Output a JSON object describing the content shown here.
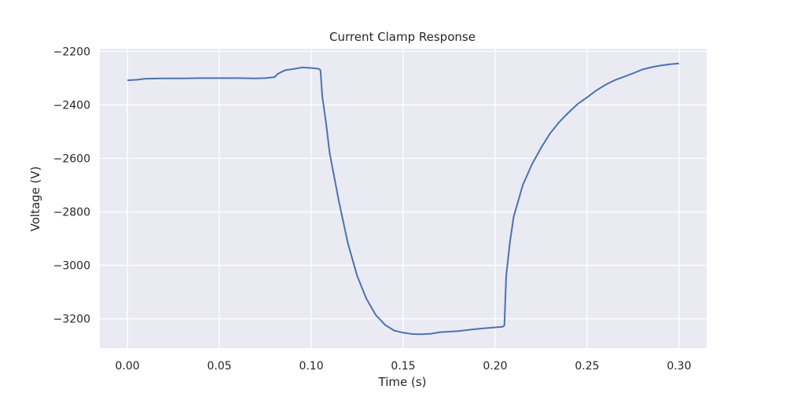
{
  "chart_data": {
    "type": "line",
    "title": "Current Clamp Response",
    "xlabel": "Time (s)",
    "ylabel": "Voltage (V)",
    "xlim": [
      -0.015,
      0.315
    ],
    "ylim": [
      -3310,
      -2190
    ],
    "x_ticks": [
      0.0,
      0.05,
      0.1,
      0.15,
      0.2,
      0.25,
      0.3
    ],
    "x_tick_labels": [
      "0.00",
      "0.05",
      "0.10",
      "0.15",
      "0.20",
      "0.25",
      "0.30"
    ],
    "y_ticks": [
      -2200,
      -2400,
      -2600,
      -2800,
      -3000,
      -3200
    ],
    "y_tick_labels": [
      "−2200",
      "−2400",
      "−2600",
      "−2800",
      "−3000",
      "−3200"
    ],
    "grid": true,
    "background": "#eaeaf2",
    "grid_color": "#ffffff",
    "line_color": "#4c72b0",
    "series": [
      {
        "x": [
          0.0,
          0.005,
          0.01,
          0.02,
          0.03,
          0.04,
          0.05,
          0.06,
          0.07,
          0.075,
          0.08,
          0.082,
          0.084,
          0.086,
          0.09,
          0.095,
          0.1,
          0.104,
          0.105,
          0.106,
          0.108,
          0.11,
          0.115,
          0.12,
          0.125,
          0.13,
          0.135,
          0.14,
          0.145,
          0.15,
          0.155,
          0.16,
          0.165,
          0.17,
          0.18,
          0.19,
          0.2,
          0.204,
          0.205,
          0.206,
          0.208,
          0.21,
          0.215,
          0.22,
          0.225,
          0.23,
          0.235,
          0.24,
          0.245,
          0.25,
          0.255,
          0.26,
          0.265,
          0.27,
          0.275,
          0.28,
          0.285,
          0.29,
          0.295,
          0.3
        ],
        "y": [
          -2308,
          -2306,
          -2302,
          -2301,
          -2301,
          -2300,
          -2300,
          -2300,
          -2301,
          -2300,
          -2296,
          -2283,
          -2276,
          -2270,
          -2266,
          -2260,
          -2262,
          -2265,
          -2270,
          -2370,
          -2465,
          -2580,
          -2760,
          -2920,
          -3040,
          -3125,
          -3185,
          -3222,
          -3244,
          -3252,
          -3257,
          -3258,
          -3256,
          -3250,
          -3246,
          -3238,
          -3232,
          -3230,
          -3225,
          -3040,
          -2915,
          -2820,
          -2700,
          -2622,
          -2560,
          -2505,
          -2463,
          -2428,
          -2396,
          -2372,
          -2346,
          -2325,
          -2308,
          -2295,
          -2282,
          -2268,
          -2259,
          -2253,
          -2248,
          -2245
        ]
      }
    ]
  }
}
